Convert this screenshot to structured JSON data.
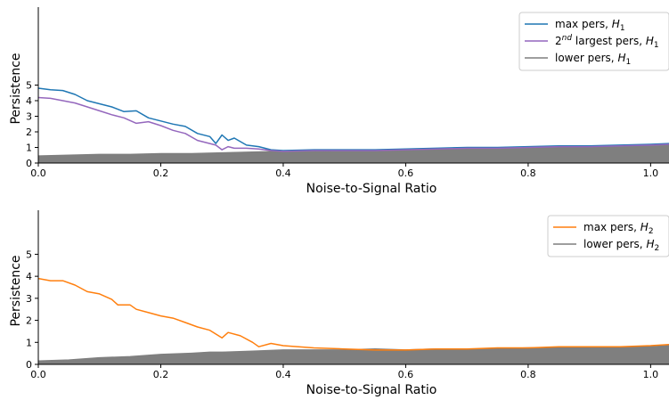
{
  "chart_data": [
    {
      "type": "line",
      "xlabel": "Noise-to-Signal Ratio",
      "ylabel": "Persistence",
      "xlim": [
        0.0,
        1.03
      ],
      "ylim": [
        0,
        10
      ],
      "xticks": [
        "0.0",
        "0.2",
        "0.4",
        "0.6",
        "0.8",
        "1.0"
      ],
      "yticks": [
        "0",
        "1",
        "2",
        "3",
        "4",
        "5"
      ],
      "legend_position": "top-right",
      "grid": false,
      "series": [
        {
          "key": "max",
          "name": "max pers, H1",
          "legend": {
            "pre": "max pers, ",
            "sup": "",
            "mid": "",
            "var": "H",
            "sub": "1"
          },
          "color": "#1f77b4",
          "x": [
            0.0,
            0.02,
            0.04,
            0.06,
            0.08,
            0.1,
            0.12,
            0.14,
            0.16,
            0.18,
            0.2,
            0.22,
            0.24,
            0.26,
            0.28,
            0.29,
            0.3,
            0.31,
            0.32,
            0.34,
            0.36,
            0.38,
            0.4,
            0.45,
            0.5,
            0.55,
            0.6,
            0.65,
            0.7,
            0.75,
            0.8,
            0.85,
            0.9,
            0.95,
            1.0,
            1.03
          ],
          "y": [
            4.8,
            4.7,
            4.65,
            4.4,
            4.0,
            3.8,
            3.6,
            3.3,
            3.35,
            2.9,
            2.7,
            2.5,
            2.35,
            1.9,
            1.7,
            1.25,
            1.8,
            1.45,
            1.6,
            1.15,
            1.05,
            0.85,
            0.8,
            0.85,
            0.85,
            0.85,
            0.9,
            0.95,
            1.0,
            1.0,
            1.05,
            1.1,
            1.1,
            1.15,
            1.2,
            1.25
          ]
        },
        {
          "key": "second",
          "name": "2nd largest pers, H1",
          "legend": {
            "pre": "2",
            "sup": "nd",
            "mid": " largest pers, ",
            "var": "H",
            "sub": "1"
          },
          "color": "#9467bd",
          "x": [
            0.0,
            0.02,
            0.04,
            0.06,
            0.08,
            0.1,
            0.12,
            0.14,
            0.16,
            0.18,
            0.2,
            0.22,
            0.24,
            0.26,
            0.28,
            0.29,
            0.3,
            0.31,
            0.32,
            0.34,
            0.36,
            0.38,
            0.4,
            0.45,
            0.5,
            0.55,
            0.6,
            0.65,
            0.7,
            0.75,
            0.8,
            0.85,
            0.9,
            0.95,
            1.0,
            1.03
          ],
          "y": [
            4.2,
            4.15,
            4.0,
            3.85,
            3.6,
            3.35,
            3.1,
            2.9,
            2.55,
            2.65,
            2.4,
            2.1,
            1.9,
            1.45,
            1.25,
            1.15,
            0.85,
            1.05,
            0.95,
            0.95,
            0.9,
            0.8,
            0.75,
            0.8,
            0.8,
            0.8,
            0.85,
            0.9,
            0.95,
            0.95,
            1.0,
            1.05,
            1.05,
            1.1,
            1.15,
            1.2
          ]
        },
        {
          "key": "lower",
          "name": "lower pers, H1",
          "legend": {
            "pre": "lower pers, ",
            "sup": "",
            "mid": "",
            "var": "H",
            "sub": "1"
          },
          "color": "#7f7f7f",
          "x": [
            0.0,
            0.05,
            0.1,
            0.15,
            0.2,
            0.25,
            0.3,
            0.35,
            0.4,
            0.45,
            0.5,
            0.55,
            0.6,
            0.65,
            0.7,
            0.75,
            0.8,
            0.85,
            0.9,
            0.95,
            1.0,
            1.03
          ],
          "y": [
            0.45,
            0.5,
            0.55,
            0.55,
            0.6,
            0.6,
            0.65,
            0.7,
            0.75,
            0.75,
            0.8,
            0.8,
            0.85,
            0.9,
            0.95,
            0.95,
            1.0,
            1.0,
            1.05,
            1.1,
            1.1,
            1.15
          ]
        }
      ]
    },
    {
      "type": "line",
      "xlabel": "Noise-to-Signal Ratio",
      "ylabel": "Persistence",
      "xlim": [
        0.0,
        1.03
      ],
      "ylim": [
        0,
        7
      ],
      "xticks": [
        "0.0",
        "0.2",
        "0.4",
        "0.6",
        "0.8",
        "1.0"
      ],
      "yticks": [
        "0",
        "1",
        "2",
        "3",
        "4",
        "5"
      ],
      "legend_position": "top-right",
      "grid": false,
      "series": [
        {
          "key": "max",
          "name": "max pers, H2",
          "legend": {
            "pre": "max pers, ",
            "sup": "",
            "mid": "",
            "var": "H",
            "sub": "2"
          },
          "color": "#ff7f0e",
          "x": [
            0.0,
            0.02,
            0.04,
            0.06,
            0.08,
            0.1,
            0.12,
            0.13,
            0.15,
            0.16,
            0.18,
            0.2,
            0.22,
            0.24,
            0.26,
            0.28,
            0.3,
            0.31,
            0.33,
            0.35,
            0.36,
            0.38,
            0.4,
            0.45,
            0.5,
            0.55,
            0.6,
            0.65,
            0.7,
            0.75,
            0.8,
            0.85,
            0.9,
            0.95,
            1.0,
            1.03
          ],
          "y": [
            3.9,
            3.8,
            3.8,
            3.6,
            3.3,
            3.2,
            2.95,
            2.7,
            2.7,
            2.5,
            2.35,
            2.2,
            2.1,
            1.9,
            1.7,
            1.55,
            1.2,
            1.45,
            1.3,
            1.0,
            0.8,
            0.95,
            0.85,
            0.75,
            0.7,
            0.65,
            0.65,
            0.7,
            0.7,
            0.75,
            0.75,
            0.8,
            0.8,
            0.8,
            0.85,
            0.9
          ]
        },
        {
          "key": "lower",
          "name": "lower pers, H2",
          "legend": {
            "pre": "lower pers, ",
            "sup": "",
            "mid": "",
            "var": "H",
            "sub": "2"
          },
          "color": "#7f7f7f",
          "x": [
            0.0,
            0.05,
            0.1,
            0.15,
            0.2,
            0.25,
            0.28,
            0.3,
            0.35,
            0.4,
            0.45,
            0.5,
            0.55,
            0.6,
            0.65,
            0.7,
            0.75,
            0.8,
            0.85,
            0.9,
            0.95,
            1.0,
            1.03
          ],
          "y": [
            0.15,
            0.2,
            0.3,
            0.35,
            0.45,
            0.5,
            0.55,
            0.55,
            0.6,
            0.65,
            0.65,
            0.65,
            0.7,
            0.65,
            0.7,
            0.7,
            0.7,
            0.75,
            0.75,
            0.75,
            0.8,
            0.8,
            0.85
          ]
        }
      ]
    }
  ]
}
